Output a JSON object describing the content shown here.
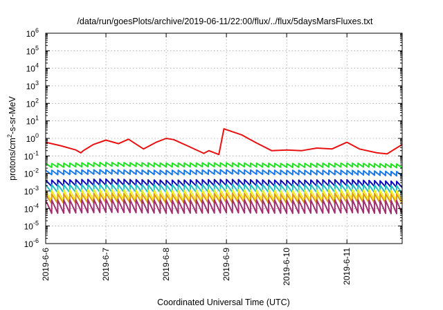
{
  "chart_data": {
    "type": "line",
    "title": "/data/run/goesPlots/archive/2019-06-11/22:00/flux/../flux/5daysMarsFluxes.txt",
    "xlabel": "Coordinated Universal Time (UTC)",
    "ylabel": "protons/cm2-s-sr-MeV",
    "ylabel_parts": {
      "before": "protons/cm",
      "sup": "2",
      "after": "-s-sr-MeV"
    },
    "yscale": "log",
    "ylim": [
      1e-06,
      1000000.0
    ],
    "y_ticks": [
      {
        "value": 1e-06,
        "base": "10",
        "exp": "-6"
      },
      {
        "value": 1e-05,
        "base": "10",
        "exp": "-5"
      },
      {
        "value": 0.0001,
        "base": "10",
        "exp": "-4"
      },
      {
        "value": 0.001,
        "base": "10",
        "exp": "-3"
      },
      {
        "value": 0.01,
        "base": "10",
        "exp": "-2"
      },
      {
        "value": 0.1,
        "base": "10",
        "exp": "-1"
      },
      {
        "value": 1.0,
        "base": "10",
        "exp": "0"
      },
      {
        "value": 10.0,
        "base": "10",
        "exp": "1"
      },
      {
        "value": 100.0,
        "base": "10",
        "exp": "2"
      },
      {
        "value": 1000.0,
        "base": "10",
        "exp": "3"
      },
      {
        "value": 10000.0,
        "base": "10",
        "exp": "4"
      },
      {
        "value": 100000.0,
        "base": "10",
        "exp": "5"
      },
      {
        "value": 1000000.0,
        "base": "10",
        "exp": "6"
      }
    ],
    "xlim": [
      "2019-06-06T00:00",
      "2019-06-11T22:00"
    ],
    "x_ticks": [
      {
        "value": "2019-06-06T00:00",
        "label": "2019-6-6"
      },
      {
        "value": "2019-06-07T00:00",
        "label": "2019-6-7"
      },
      {
        "value": "2019-06-08T00:00",
        "label": "2019-6-8"
      },
      {
        "value": "2019-06-09T00:00",
        "label": "2019-6-9"
      },
      {
        "value": "2019-06-10T00:00",
        "label": "2019-6-10"
      },
      {
        "value": "2019-06-11T00:00",
        "label": "2019-6-11"
      }
    ],
    "grid": true,
    "series": [
      {
        "color": "#e81010",
        "x": [
          "2019-06-06T00:00",
          "2019-06-06T06:00",
          "2019-06-06T12:00",
          "2019-06-06T14:00",
          "2019-06-06T15:00",
          "2019-06-06T19:00",
          "2019-06-07T00:00",
          "2019-06-07T05:00",
          "2019-06-07T09:00",
          "2019-06-07T15:00",
          "2019-06-07T20:00",
          "2019-06-08T00:00",
          "2019-06-08T03:00",
          "2019-06-08T09:00",
          "2019-06-08T15:00",
          "2019-06-08T17:00",
          "2019-06-08T21:00",
          "2019-06-08T23:00",
          "2019-06-09T06:00",
          "2019-06-09T12:00",
          "2019-06-09T18:00",
          "2019-06-10T00:00",
          "2019-06-10T06:00",
          "2019-06-10T12:00",
          "2019-06-10T18:00",
          "2019-06-11T00:00",
          "2019-06-11T05:00",
          "2019-06-11T12:00",
          "2019-06-11T16:00",
          "2019-06-11T22:00"
        ],
        "y": [
          0.6,
          0.38,
          0.22,
          0.15,
          0.2,
          0.45,
          0.8,
          0.5,
          0.9,
          0.25,
          0.6,
          1.0,
          0.85,
          0.35,
          0.14,
          0.2,
          0.12,
          3.5,
          1.6,
          0.55,
          0.2,
          0.22,
          0.2,
          0.28,
          0.25,
          0.6,
          0.25,
          0.15,
          0.13,
          0.45
        ]
      },
      {
        "color": "#22e022",
        "x": [
          "2019-06-06T00:00",
          "2019-06-07T00:00",
          "2019-06-08T00:00",
          "2019-06-09T00:00",
          "2019-06-10T00:00",
          "2019-06-11T00:00",
          "2019-06-11T22:00"
        ],
        "y": [
          0.03,
          0.035,
          0.032,
          0.033,
          0.03,
          0.032,
          0.028
        ]
      },
      {
        "color": "#1a7ae8",
        "x": [
          "2019-06-06T00:00",
          "2019-06-07T00:00",
          "2019-06-08T00:00",
          "2019-06-09T00:00",
          "2019-06-10T00:00",
          "2019-06-11T00:00",
          "2019-06-11T22:00"
        ],
        "y": [
          0.012,
          0.013,
          0.012,
          0.013,
          0.012,
          0.012,
          0.01
        ]
      },
      {
        "color": "#0a0ab8",
        "x": [
          "2019-06-06T00:00",
          "2019-06-07T00:00",
          "2019-06-08T00:00",
          "2019-06-09T00:00",
          "2019-06-10T00:00",
          "2019-06-11T00:00",
          "2019-06-11T22:00"
        ],
        "y": [
          0.003,
          0.0035,
          0.003,
          0.0033,
          0.003,
          0.0032,
          0.0025
        ]
      },
      {
        "color": "#20c0c0",
        "x": [
          "2019-06-06T00:00",
          "2019-06-07T00:00",
          "2019-06-08T00:00",
          "2019-06-09T00:00",
          "2019-06-10T00:00",
          "2019-06-11T00:00",
          "2019-06-11T22:00"
        ],
        "y": [
          0.0015,
          0.0016,
          0.0015,
          0.0016,
          0.0015,
          0.0016,
          0.0013
        ]
      },
      {
        "color": "#f4f020",
        "x": [
          "2019-06-06T00:00",
          "2019-06-07T00:00",
          "2019-06-08T00:00",
          "2019-06-09T00:00",
          "2019-06-10T00:00",
          "2019-06-11T00:00",
          "2019-06-11T22:00"
        ],
        "y": [
          0.0006,
          0.0007,
          0.0006,
          0.0007,
          0.0006,
          0.0007,
          0.0006
        ]
      },
      {
        "color": "#e09a10",
        "x": [
          "2019-06-06T00:00",
          "2019-06-07T00:00",
          "2019-06-08T00:00",
          "2019-06-09T00:00",
          "2019-06-10T00:00",
          "2019-06-11T00:00",
          "2019-06-11T22:00"
        ],
        "y": [
          0.0004,
          0.00045,
          0.0004,
          0.00045,
          0.0004,
          0.00045,
          0.0004
        ]
      },
      {
        "color": "#a03070",
        "x": [
          "2019-06-06T00:00",
          "2019-06-07T00:00",
          "2019-06-08T00:00",
          "2019-06-09T00:00",
          "2019-06-10T00:00",
          "2019-06-11T00:00",
          "2019-06-11T22:00"
        ],
        "y": [
          0.00015,
          0.00017,
          0.00015,
          0.00016,
          0.00015,
          0.00016,
          0.00014
        ]
      }
    ]
  }
}
